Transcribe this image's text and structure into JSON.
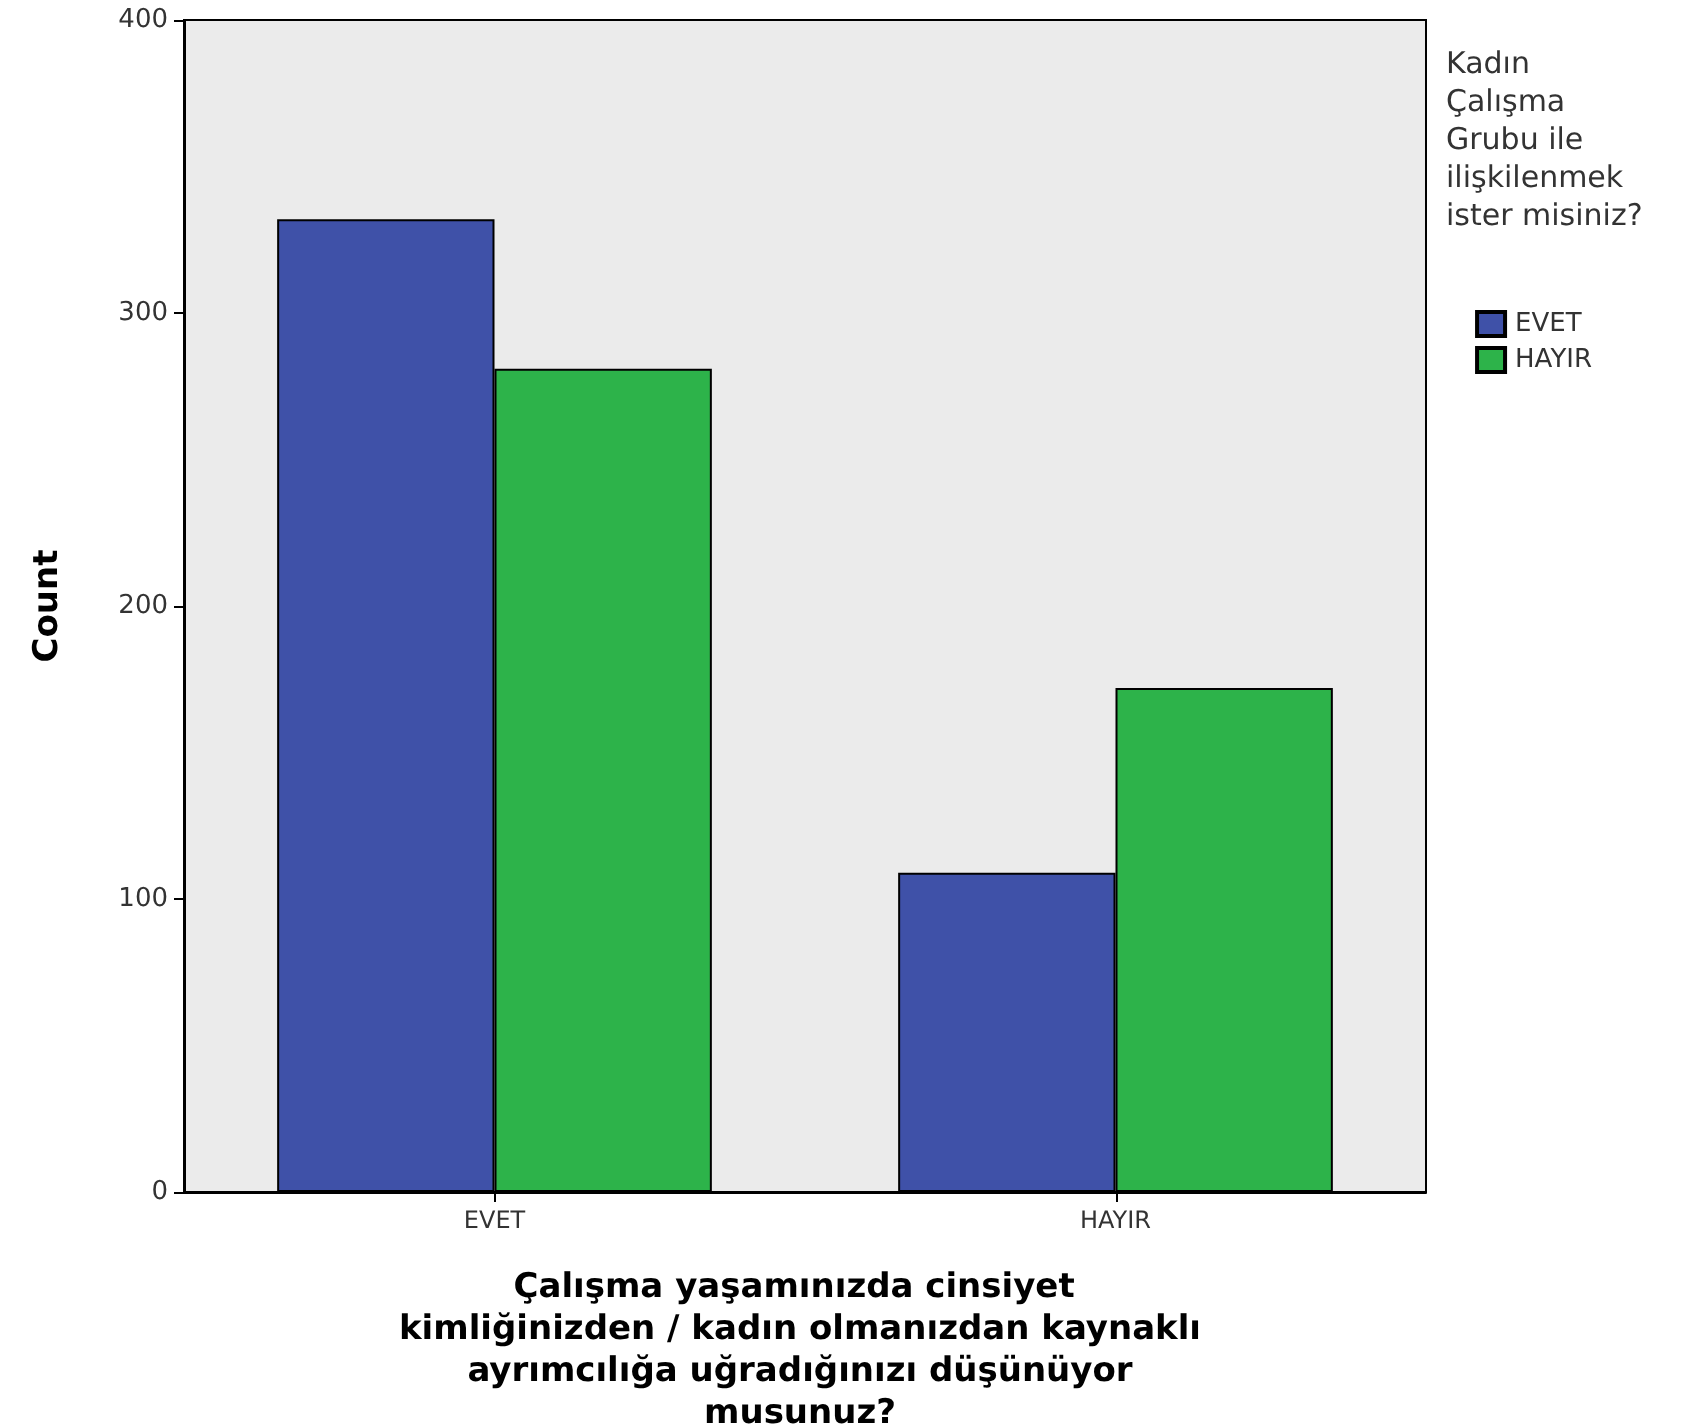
{
  "chart_data": {
    "type": "bar",
    "xlabel": "Çalışma yaşamınızda cinsiyet kimliğinizden / kadın olmanızdan kaynaklı ayrımcılığa uğradığınızı düşünüyor musunuz?",
    "ylabel": "Count",
    "legend_title": "Kadın Çalışma Grubu ile ilişkilenmek ister misiniz?",
    "categories": [
      "EVET",
      "HAYIR"
    ],
    "series": [
      {
        "name": "EVET",
        "color": "#3f51a8",
        "values": [
          332,
          109
        ]
      },
      {
        "name": "HAYIR",
        "color": "#2db34a",
        "values": [
          281,
          172
        ]
      }
    ],
    "ylim": [
      0,
      400
    ],
    "yticks": [
      0,
      100,
      200,
      300,
      400
    ],
    "grid": false,
    "legend": "top right"
  }
}
